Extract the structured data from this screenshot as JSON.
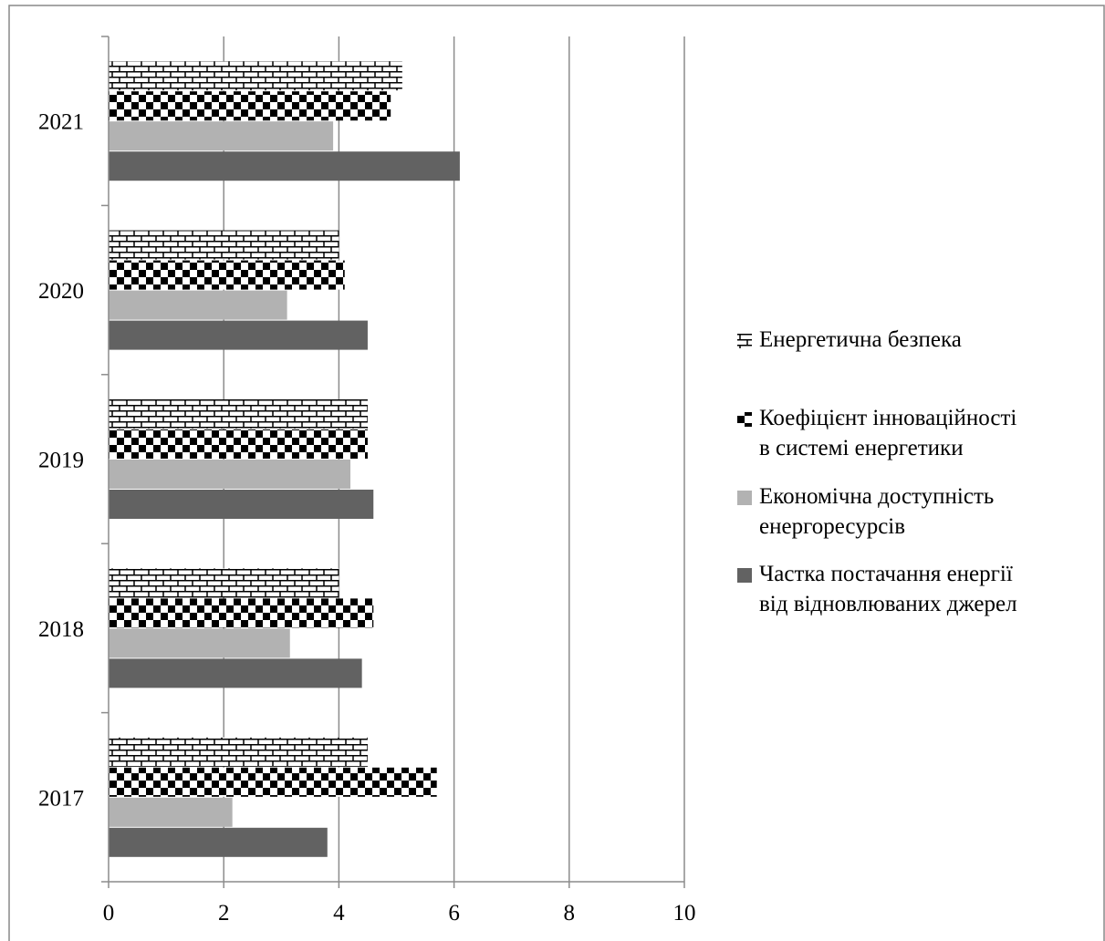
{
  "chart_data": {
    "type": "bar",
    "orientation": "horizontal",
    "categories": [
      "2017",
      "2018",
      "2019",
      "2020",
      "2021"
    ],
    "series": [
      {
        "name": "Частка постачання енергії від відновлюваних джерел",
        "legend_lines": [
          "Частка постачання енергії",
          "від відновлюваних джерел"
        ],
        "values": [
          3.8,
          4.4,
          4.6,
          4.5,
          6.1
        ],
        "color": "#626262",
        "pattern": "solid"
      },
      {
        "name": "Економічна доступність енергоресурсів",
        "legend_lines": [
          "Економічна доступність",
          "енергоресурсів"
        ],
        "values": [
          2.15,
          3.15,
          4.2,
          3.1,
          3.9
        ],
        "color": "#b2b2b2",
        "pattern": "solid"
      },
      {
        "name": "Коефіцієнт інноваційності в системі енергетики",
        "legend_lines": [
          "Коефіцієнт інноваційності",
          "в системі енергетики"
        ],
        "values": [
          5.7,
          4.6,
          4.5,
          4.1,
          4.9
        ],
        "color": "#000000",
        "pattern": "checkerboard"
      },
      {
        "name": "Енергетична безпека",
        "legend_lines": [
          "Енергетична безпека"
        ],
        "values": [
          4.5,
          4.0,
          4.5,
          4.0,
          5.1
        ],
        "color": "#000000",
        "pattern": "brick"
      }
    ],
    "legend_order": [
      3,
      2,
      1,
      0
    ],
    "xlim": [
      0,
      10
    ],
    "xticks": [
      "0",
      "2",
      "4",
      "6",
      "8",
      "10"
    ],
    "xlabel": "",
    "ylabel": "",
    "title": "",
    "grid": "vertical",
    "legend_position": "right"
  }
}
